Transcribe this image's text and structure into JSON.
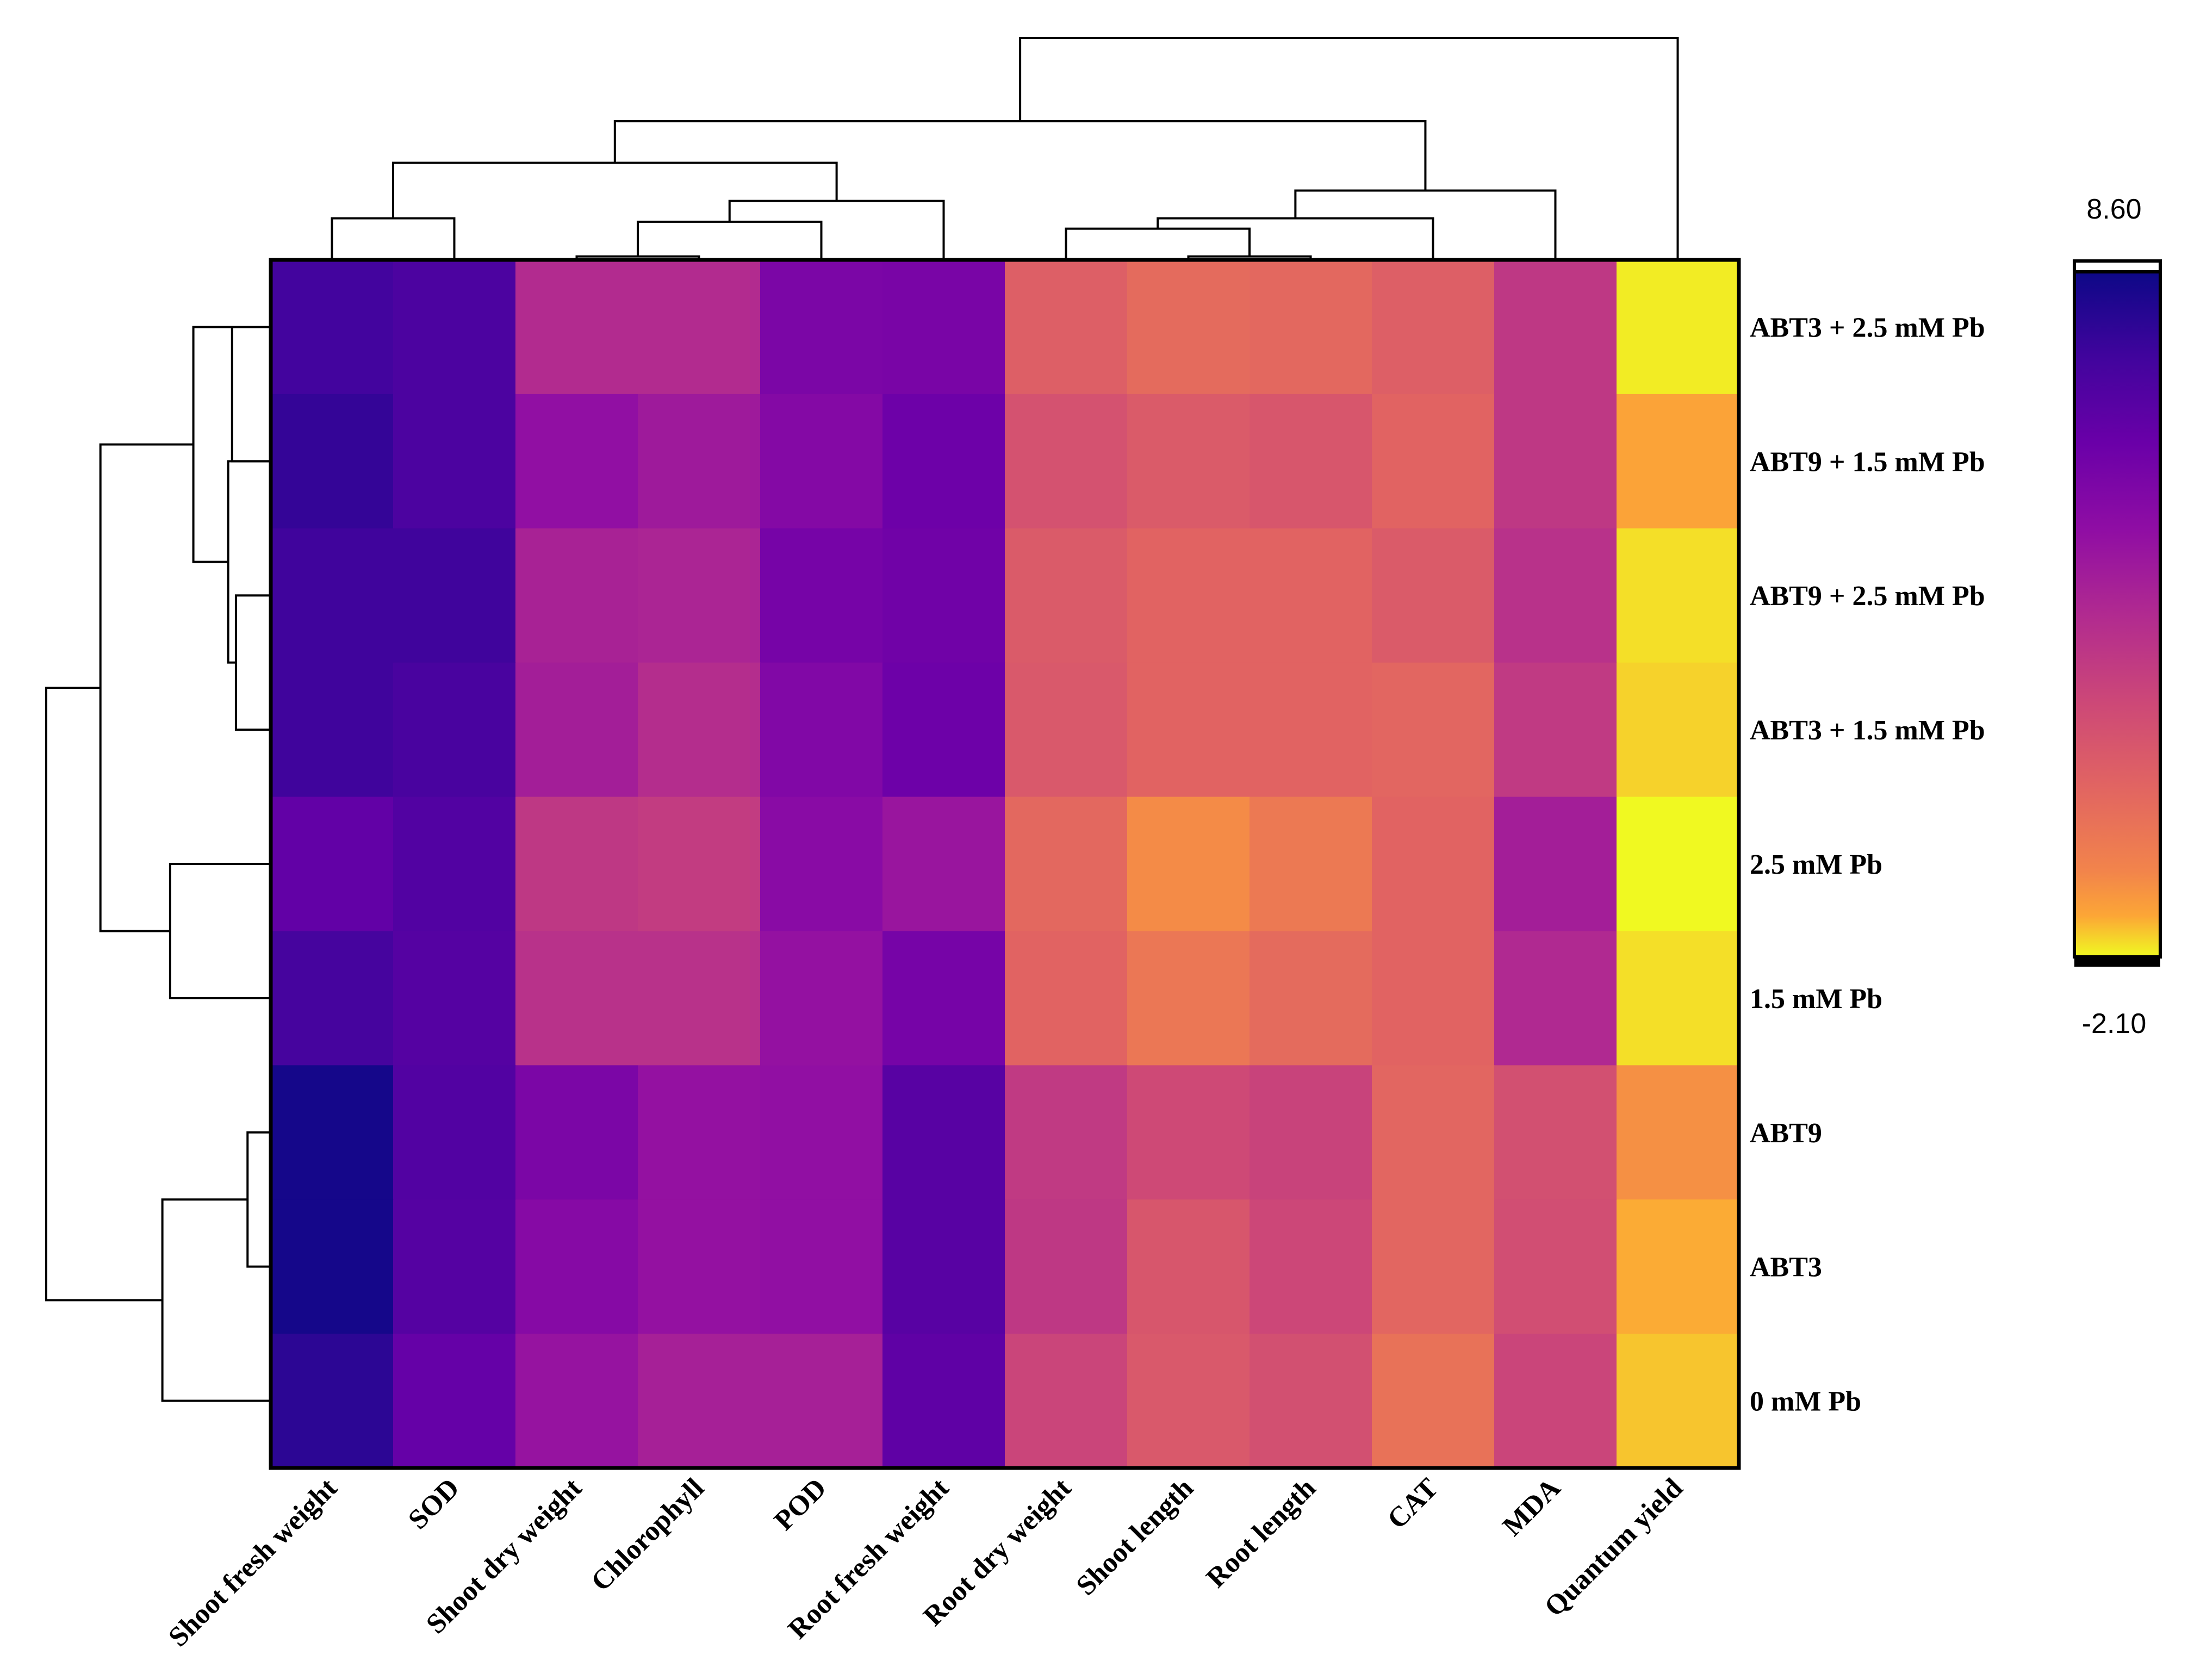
{
  "chart_data": {
    "type": "heatmap",
    "title": "",
    "columns": [
      "Shoot fresh weight",
      "SOD",
      "Shoot dry weight",
      "Chlorophyll",
      "POD",
      "Root fresh weight",
      "Root dry weight",
      "Shoot length",
      "Root length",
      "CAT",
      "MDA",
      "Quantum yield"
    ],
    "rows": [
      "ABT3 + 2.5 mM Pb",
      "ABT9 + 1.5 mM Pb",
      "ABT9 + 2.5 mM Pb",
      "ABT3 + 1.5 mM Pb",
      "2.5 mM Pb",
      "1.5 mM Pb",
      "ABT9",
      "ABT3",
      "0 mM Pb"
    ],
    "values": [
      [
        7.2,
        6.9,
        3.2,
        3.2,
        5.3,
        5.4,
        0.8,
        0.3,
        0.4,
        0.8,
        2.6,
        -2.0
      ],
      [
        7.6,
        6.9,
        4.5,
        4.0,
        5.0,
        5.8,
        1.4,
        1.0,
        1.2,
        0.6,
        2.6,
        -1.4
      ],
      [
        7.3,
        7.3,
        3.6,
        3.5,
        5.5,
        5.7,
        1.0,
        0.6,
        0.6,
        1.0,
        2.9,
        -1.9
      ],
      [
        7.3,
        7.0,
        3.8,
        3.1,
        5.1,
        5.8,
        1.1,
        0.6,
        0.6,
        0.5,
        2.5,
        -1.8
      ],
      [
        6.2,
        6.7,
        2.6,
        2.4,
        4.8,
        4.2,
        0.4,
        -0.9,
        -0.3,
        0.6,
        3.8,
        -2.1
      ],
      [
        7.1,
        6.6,
        2.9,
        2.9,
        4.4,
        5.5,
        0.6,
        -0.2,
        0.3,
        0.6,
        3.3,
        -1.9
      ],
      [
        8.4,
        6.7,
        5.3,
        4.4,
        4.5,
        6.5,
        2.5,
        1.8,
        2.1,
        0.5,
        1.5,
        -1.0
      ],
      [
        8.4,
        6.6,
        4.9,
        4.4,
        4.5,
        6.5,
        2.6,
        1.2,
        1.9,
        0.5,
        1.6,
        -1.5
      ],
      [
        7.8,
        6.1,
        4.3,
        3.7,
        3.7,
        6.3,
        2.0,
        1.1,
        1.5,
        0.0,
        2.0,
        -1.7
      ]
    ],
    "colorbar": {
      "max_label": "8.60",
      "min_label": "-2.10",
      "vmax": 8.6,
      "vmin": -2.1,
      "colormap": "plasma (reversed)"
    },
    "row_dendrogram": [
      {
        "a": 0,
        "b": 1,
        "h": 0.5
      },
      {
        "a": 2,
        "b": 3,
        "h": 0.45
      },
      {
        "a": 1,
        "b": 2.5,
        "h": 0.55
      },
      {
        "a": 0,
        "b": 1.75,
        "h": 1.0
      },
      {
        "a": 4,
        "b": 5,
        "h": 1.3
      },
      {
        "a": 0.875,
        "b": 4.5,
        "h": 2.2
      },
      {
        "a": 6,
        "b": 7,
        "h": 0.3
      },
      {
        "a": 6.5,
        "b": 8,
        "h": 1.4
      },
      {
        "a": 2.6875,
        "b": 7.25,
        "h": 2.9
      }
    ],
    "col_dendrogram": [
      {
        "a": 0,
        "b": 1,
        "h": 0.6
      },
      {
        "a": 2,
        "b": 3,
        "h": 0.05
      },
      {
        "a": 2.5,
        "b": 4,
        "h": 0.55
      },
      {
        "a": 3.25,
        "b": 5,
        "h": 0.85
      },
      {
        "a": 0.5,
        "b": 4.125,
        "h": 1.4
      },
      {
        "a": 7,
        "b": 8,
        "h": 0.05
      },
      {
        "a": 7.5,
        "b": 6,
        "h": 0.45
      },
      {
        "a": 6.75,
        "b": 9,
        "h": 0.6
      },
      {
        "a": 7.875,
        "b": 10,
        "h": 1.0
      },
      {
        "a": 2.3125,
        "b": 8.9375,
        "h": 2.0
      },
      {
        "a": 5.625,
        "b": 11,
        "h": 3.2
      }
    ]
  }
}
